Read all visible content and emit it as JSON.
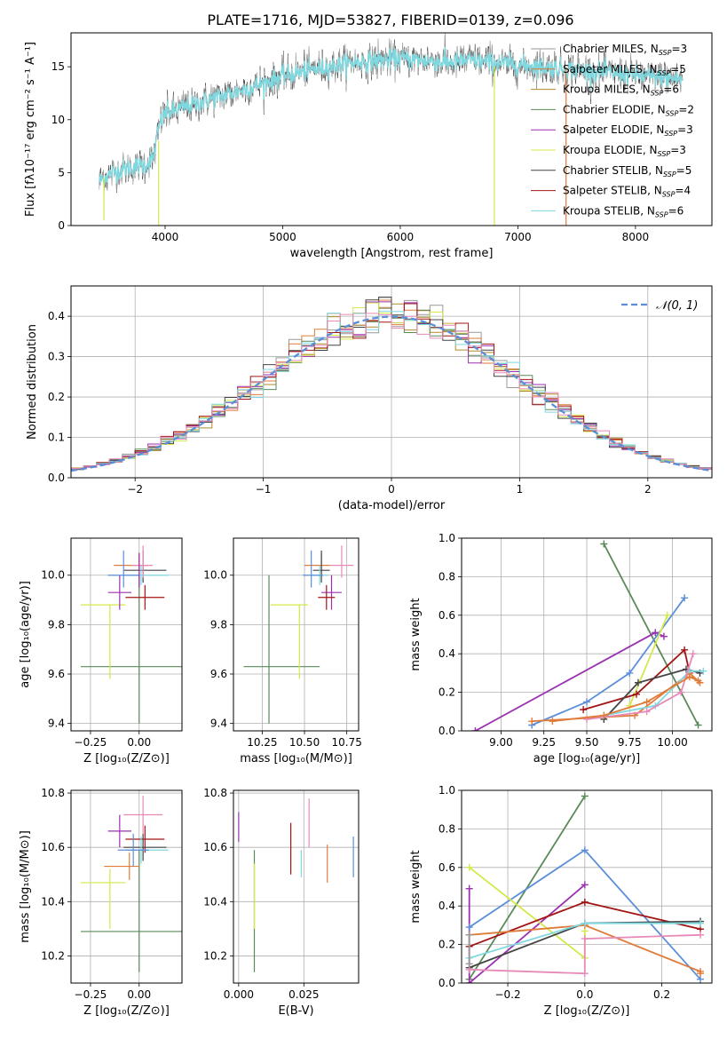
{
  "figure": {
    "title": "PLATE=1716, MJD=53827, FIBERID=0139, z=0.096"
  },
  "colors": {
    "Chabrier MILES": "#999999",
    "Salpeter MILES": "#e07b39",
    "Kroupa MILES": "#b08a2a",
    "Chabrier ELODIE": "#5a8a5a",
    "Salpeter ELODIE": "#9b30b0",
    "Kroupa ELODIE": "#d4e84a",
    "Chabrier STELIB": "#444444",
    "Salpeter STELIB": "#a31515",
    "Kroupa STELIB": "#7ed8e0",
    "gaussian": "#5b8ed8",
    "pink": "#e88ab8",
    "blue": "#5b8ed8",
    "orange": "#e07b39"
  },
  "chart_data": [
    {
      "id": "spectrum",
      "type": "line",
      "title": "PLATE=1716, MJD=53827, FIBERID=0139, z=0.096",
      "xlabel": "wavelength [Angstrom, rest frame]",
      "ylabel": "Flux [fλ10⁻¹⁷ erg cm⁻² s⁻¹ A⁻¹]",
      "xlim": [
        3200,
        8650
      ],
      "ylim": [
        0,
        18.2
      ],
      "xticks": [
        4000,
        5000,
        6000,
        7000,
        8000
      ],
      "yticks": [
        0,
        5,
        10,
        15
      ],
      "grid": false,
      "legend_placement": "top-right",
      "legend": [
        {
          "label": "Chabrier MILES, N",
          "sub": "SSP",
          "value": "=3"
        },
        {
          "label": "Salpeter MILES, N",
          "sub": "SSP",
          "value": "=5"
        },
        {
          "label": "Kroupa MILES, N",
          "sub": "SSP",
          "value": "=6"
        },
        {
          "label": "Chabrier ELODIE, N",
          "sub": "SSP",
          "value": "=2"
        },
        {
          "label": "Salpeter ELODIE, N",
          "sub": "SSP",
          "value": "=3"
        },
        {
          "label": "Kroupa ELODIE, N",
          "sub": "SSP",
          "value": "=3"
        },
        {
          "label": "Chabrier STELIB, N",
          "sub": "SSP",
          "value": "=5"
        },
        {
          "label": "Salpeter STELIB, N",
          "sub": "SSP",
          "value": "=4"
        },
        {
          "label": "Kroupa STELIB, N",
          "sub": "SSP",
          "value": "=6"
        }
      ],
      "continuum": {
        "x": [
          3440,
          3550,
          3700,
          3850,
          3900,
          3950,
          4000,
          4200,
          4400,
          4600,
          4800,
          5000,
          5200,
          5400,
          5600,
          5800,
          6000,
          6200,
          6400,
          6600,
          6800,
          7000,
          7200,
          7400,
          7600,
          7800,
          8000,
          8200,
          8400
        ],
        "y": [
          4.2,
          5.0,
          5.5,
          5.8,
          6.4,
          9.5,
          10.6,
          11.3,
          12.0,
          12.6,
          13.3,
          14.1,
          14.6,
          15.0,
          15.4,
          15.6,
          15.8,
          15.6,
          15.4,
          15.6,
          15.4,
          15.2,
          15.0,
          14.8,
          14.6,
          14.4,
          14.2,
          14.0,
          13.8
        ]
      },
      "spikes": [
        {
          "x": 3480,
          "y_from": 4.5,
          "y_to": 0.5
        },
        {
          "x": 3945,
          "y_from": 8.0,
          "y_to": 0.0
        },
        {
          "x": 6800,
          "y_from": 15.0,
          "y_to": 0.0
        },
        {
          "x": 7410,
          "y_from": 15.0,
          "y_to": 0.0
        }
      ]
    },
    {
      "id": "residuals",
      "type": "histogram",
      "xlabel": "(data-model)/error",
      "ylabel": "Normed distribution",
      "xlim": [
        -2.5,
        2.5
      ],
      "ylim": [
        0,
        0.475
      ],
      "xticks": [
        -2,
        -1,
        0,
        1,
        2
      ],
      "yticks": [
        0.0,
        0.1,
        0.2,
        0.3,
        0.4
      ],
      "grid": true,
      "legend_placement": "top-right",
      "gaussian_label": "𝒩(0, 1)",
      "bin_width": 0.1,
      "bin_start": -2.5
    },
    {
      "id": "age_vs_Z",
      "type": "scatter",
      "xlabel": "Z [log₁₀(Z/Z⊙)]",
      "ylabel": "age  [log₁₀(age/yr)]",
      "xlim": [
        -0.35,
        0.22
      ],
      "ylim": [
        9.37,
        10.15
      ],
      "xticks": [
        -0.25,
        0.0
      ],
      "yticks": [
        9.4,
        9.6,
        9.8,
        10.0
      ],
      "grid": true,
      "points": [
        {
          "c": "Chabrier ELODIE",
          "x": 0.0,
          "xerr": [
            0.3,
            0.3
          ],
          "y": 9.63,
          "yerr": [
            0.23,
            0.37
          ]
        },
        {
          "c": "Kroupa ELODIE",
          "x": -0.15,
          "xerr": [
            0.15,
            0.08
          ],
          "y": 9.88,
          "yerr": [
            0.3,
            0.0
          ]
        },
        {
          "c": "Salpeter ELODIE",
          "x": -0.1,
          "xerr": [
            0.06,
            0.06
          ],
          "y": 9.93,
          "yerr": [
            0.07,
            0.07
          ]
        },
        {
          "c": "Salpeter STELIB",
          "x": 0.03,
          "xerr": [
            0.1,
            0.1
          ],
          "y": 9.91,
          "yerr": [
            0.05,
            0.05
          ]
        },
        {
          "c": "Salpeter MILES",
          "x": 0.0,
          "xerr": [
            0.13,
            0.05
          ],
          "y": 10.04,
          "yerr": [
            0.05,
            0.05
          ]
        },
        {
          "c": "Chabrier STELIB",
          "x": 0.02,
          "xerr": [
            0.1,
            0.12
          ],
          "y": 10.02,
          "yerr": [
            0.05,
            0.08
          ]
        },
        {
          "c": "Kroupa STELIB",
          "x": 0.01,
          "xerr": [
            0.08,
            0.14
          ],
          "y": 10.0,
          "yerr": [
            0.04,
            0.04
          ]
        },
        {
          "c": "pink",
          "x": 0.02,
          "xerr": [
            0.06,
            0.05
          ],
          "y": 10.04,
          "yerr": [
            0.05,
            0.08
          ]
        },
        {
          "c": "blue",
          "x": -0.08,
          "xerr": [
            0.08,
            0.08
          ],
          "y": 10.0,
          "yerr": [
            0.05,
            0.1
          ]
        },
        {
          "c": "Salpeter ELODIE",
          "x": 0.0,
          "xerr": [
            0.0,
            0.0
          ],
          "y": 10.03,
          "yerr": [
            0.08,
            0.06
          ]
        }
      ]
    },
    {
      "id": "age_vs_mass",
      "type": "scatter",
      "xlabel": "mass [log₁₀(M/M⊙)]",
      "ylabel": "",
      "xlim": [
        10.08,
        10.82
      ],
      "ylim": [
        9.37,
        10.15
      ],
      "xticks": [
        10.25,
        10.5,
        10.75
      ],
      "yticks": [
        9.4,
        9.6,
        9.8,
        10.0
      ],
      "grid": true,
      "points": [
        {
          "c": "Chabrier ELODIE",
          "x": 10.29,
          "xerr": [
            0.15,
            0.3
          ],
          "y": 9.63,
          "yerr": [
            0.23,
            0.37
          ]
        },
        {
          "c": "Kroupa ELODIE",
          "x": 10.47,
          "xerr": [
            0.17,
            0.05
          ],
          "y": 9.88,
          "yerr": [
            0.3,
            0.0
          ]
        },
        {
          "c": "Salpeter ELODIE",
          "x": 10.66,
          "xerr": [
            0.06,
            0.06
          ],
          "y": 9.93,
          "yerr": [
            0.07,
            0.07
          ]
        },
        {
          "c": "Salpeter STELIB",
          "x": 10.63,
          "xerr": [
            0.05,
            0.05
          ],
          "y": 9.91,
          "yerr": [
            0.05,
            0.05
          ]
        },
        {
          "c": "Salpeter MILES",
          "x": 10.6,
          "xerr": [
            0.1,
            0.05
          ],
          "y": 10.04,
          "yerr": [
            0.05,
            0.05
          ]
        },
        {
          "c": "Chabrier STELIB",
          "x": 10.6,
          "xerr": [
            0.05,
            0.05
          ],
          "y": 10.02,
          "yerr": [
            0.05,
            0.08
          ]
        },
        {
          "c": "Kroupa STELIB",
          "x": 10.59,
          "xerr": [
            0.05,
            0.05
          ],
          "y": 10.0,
          "yerr": [
            0.04,
            0.04
          ]
        },
        {
          "c": "pink",
          "x": 10.72,
          "xerr": [
            0.07,
            0.07
          ],
          "y": 10.04,
          "yerr": [
            0.05,
            0.08
          ]
        },
        {
          "c": "blue",
          "x": 10.54,
          "xerr": [
            0.05,
            0.07
          ],
          "y": 10.0,
          "yerr": [
            0.05,
            0.1
          ]
        }
      ]
    },
    {
      "id": "weight_vs_age",
      "type": "line",
      "xlabel": "age  [log₁₀(age/yr)]",
      "ylabel": "mass weight",
      "xlim": [
        8.77,
        10.23
      ],
      "ylim": [
        0,
        1.0
      ],
      "xticks": [
        9.0,
        9.25,
        9.5,
        9.75,
        10.0
      ],
      "yticks": [
        0.0,
        0.2,
        0.4,
        0.6,
        0.8,
        1.0
      ],
      "grid": true,
      "series": [
        {
          "c": "Chabrier ELODIE",
          "x": [
            9.6,
            10.15
          ],
          "y": [
            0.97,
            0.03
          ]
        },
        {
          "c": "Salpeter ELODIE",
          "x": [
            8.85,
            9.9,
            9.95
          ],
          "y": [
            0.0,
            0.51,
            0.49
          ]
        },
        {
          "c": "blue",
          "x": [
            9.18,
            9.5,
            9.75,
            10.07
          ],
          "y": [
            0.03,
            0.15,
            0.3,
            0.69
          ]
        },
        {
          "c": "Kroupa ELODIE",
          "x": [
            9.75,
            9.97
          ],
          "y": [
            0.13,
            0.6
          ]
        },
        {
          "c": "Salpeter STELIB",
          "x": [
            9.48,
            9.79,
            10.07,
            10.1
          ],
          "y": [
            0.11,
            0.19,
            0.42,
            0.3
          ]
        },
        {
          "c": "Chabrier STELIB",
          "x": [
            9.6,
            9.8,
            10.08,
            10.16
          ],
          "y": [
            0.06,
            0.25,
            0.32,
            0.3
          ]
        },
        {
          "c": "Salpeter MILES",
          "x": [
            9.18,
            9.78,
            10.1,
            10.16
          ],
          "y": [
            0.05,
            0.08,
            0.3,
            0.25
          ]
        },
        {
          "c": "Kroupa STELIB",
          "x": [
            9.6,
            9.9,
            10.1,
            10.18
          ],
          "y": [
            0.08,
            0.13,
            0.31,
            0.31
          ]
        },
        {
          "c": "pink",
          "x": [
            9.5,
            9.85,
            10.05,
            10.12
          ],
          "y": [
            0.06,
            0.1,
            0.2,
            0.4
          ]
        },
        {
          "c": "Salpeter MILES",
          "x": [
            9.3,
            9.6,
            9.85,
            10.1,
            10.15
          ],
          "y": [
            0.05,
            0.08,
            0.15,
            0.28,
            0.26
          ]
        }
      ]
    },
    {
      "id": "mass_vs_Z",
      "type": "scatter",
      "xlabel": "Z [log₁₀(Z/Z⊙)]",
      "ylabel": "mass [log₁₀(M/M⊙)]",
      "xlim": [
        -0.35,
        0.22
      ],
      "ylim": [
        10.1,
        10.81
      ],
      "xticks": [
        -0.25,
        0.0
      ],
      "yticks": [
        10.2,
        10.4,
        10.6,
        10.8
      ],
      "grid": true,
      "points": [
        {
          "c": "Chabrier ELODIE",
          "x": 0.0,
          "xerr": [
            0.3,
            0.3
          ],
          "y": 10.29,
          "yerr": [
            0.15,
            0.3
          ]
        },
        {
          "c": "Kroupa ELODIE",
          "x": -0.15,
          "xerr": [
            0.15,
            0.08
          ],
          "y": 10.47,
          "yerr": [
            0.17,
            0.05
          ]
        },
        {
          "c": "Salpeter ELODIE",
          "x": -0.1,
          "xerr": [
            0.06,
            0.06
          ],
          "y": 10.66,
          "yerr": [
            0.06,
            0.06
          ]
        },
        {
          "c": "Salpeter STELIB",
          "x": 0.03,
          "xerr": [
            0.1,
            0.1
          ],
          "y": 10.63,
          "yerr": [
            0.05,
            0.05
          ]
        },
        {
          "c": "Salpeter MILES",
          "x": -0.05,
          "xerr": [
            0.13,
            0.05
          ],
          "y": 10.53,
          "yerr": [
            0.05,
            0.05
          ]
        },
        {
          "c": "Chabrier STELIB",
          "x": 0.02,
          "xerr": [
            0.1,
            0.12
          ],
          "y": 10.6,
          "yerr": [
            0.05,
            0.05
          ]
        },
        {
          "c": "Kroupa STELIB",
          "x": 0.01,
          "xerr": [
            0.08,
            0.14
          ],
          "y": 10.59,
          "yerr": [
            0.05,
            0.05
          ]
        },
        {
          "c": "pink",
          "x": 0.02,
          "xerr": [
            0.1,
            0.1
          ],
          "y": 10.72,
          "yerr": [
            0.07,
            0.07
          ]
        },
        {
          "c": "blue",
          "x": -0.03,
          "xerr": [
            0.08,
            0.08
          ],
          "y": 10.59,
          "yerr": [
            0.06,
            0.06
          ]
        }
      ]
    },
    {
      "id": "mass_vs_ebv",
      "type": "scatter",
      "xlabel": "E(B-V)",
      "ylabel": "",
      "xlim": [
        -0.002,
        0.046
      ],
      "ylim": [
        10.1,
        10.81
      ],
      "xticks": [
        0.0,
        0.025
      ],
      "yticks": [
        10.2,
        10.4,
        10.6,
        10.8
      ],
      "grid": true,
      "points": [
        {
          "c": "Salpeter ELODIE",
          "x": 0.0,
          "y": 10.67,
          "yerr": [
            0.05,
            0.06
          ]
        },
        {
          "c": "Chabrier ELODIE",
          "x": 0.006,
          "y": 10.29,
          "yerr": [
            0.15,
            0.3
          ]
        },
        {
          "c": "Kroupa ELODIE",
          "x": 0.006,
          "y": 10.47,
          "yerr": [
            0.17,
            0.07
          ]
        },
        {
          "c": "Salpeter STELIB",
          "x": 0.02,
          "y": 10.6,
          "yerr": [
            0.1,
            0.09
          ]
        },
        {
          "c": "Kroupa STELIB",
          "x": 0.024,
          "y": 10.56,
          "yerr": [
            0.07,
            0.03
          ]
        },
        {
          "c": "pink",
          "x": 0.027,
          "y": 10.68,
          "yerr": [
            0.08,
            0.1
          ]
        },
        {
          "c": "Salpeter MILES",
          "x": 0.034,
          "y": 10.54,
          "yerr": [
            0.07,
            0.07
          ]
        },
        {
          "c": "blue",
          "x": 0.044,
          "y": 10.56,
          "yerr": [
            0.07,
            0.08
          ]
        }
      ]
    },
    {
      "id": "weight_vs_Z",
      "type": "line",
      "xlabel": "Z [log₁₀(Z/Z⊙)]",
      "ylabel": "mass weight",
      "xlim": [
        -0.32,
        0.33
      ],
      "ylim": [
        0,
        1.0
      ],
      "xticks": [
        -0.2,
        0.0,
        0.2
      ],
      "yticks": [
        0.0,
        0.2,
        0.4,
        0.6,
        0.8,
        1.0
      ],
      "grid": true,
      "series": [
        {
          "c": "Chabrier ELODIE",
          "x": [
            -0.3,
            0.0
          ],
          "y": [
            0.02,
            0.97
          ]
        },
        {
          "c": "Salpeter ELODIE",
          "x": [
            -0.3,
            -0.3,
            0.0
          ],
          "y": [
            0.49,
            0.0,
            0.51
          ]
        },
        {
          "c": "blue",
          "x": [
            -0.3,
            0.0,
            0.3
          ],
          "y": [
            0.29,
            0.69,
            0.02
          ]
        },
        {
          "c": "Kroupa ELODIE",
          "x": [
            -0.3,
            0.0,
            0.0
          ],
          "y": [
            0.6,
            0.13,
            0.27
          ]
        },
        {
          "c": "Salpeter STELIB",
          "x": [
            -0.3,
            0.0,
            0.3
          ],
          "y": [
            0.19,
            0.42,
            0.28
          ]
        },
        {
          "c": "Chabrier STELIB",
          "x": [
            -0.3,
            0.0,
            0.3
          ],
          "y": [
            0.08,
            0.31,
            0.32
          ]
        },
        {
          "c": "Salpeter MILES",
          "x": [
            -0.3,
            0.0,
            0.3,
            0.3
          ],
          "y": [
            0.25,
            0.3,
            0.06,
            0.05
          ]
        },
        {
          "c": "Kroupa STELIB",
          "x": [
            -0.3,
            0.0,
            0.3
          ],
          "y": [
            0.13,
            0.31,
            0.31
          ]
        },
        {
          "c": "pink",
          "x": [
            -0.3,
            0.0,
            0.0,
            0.3
          ],
          "y": [
            0.07,
            0.05,
            0.23,
            0.25
          ]
        },
        {
          "c": "Chabrier MILES",
          "x": [
            -0.3,
            -0.3
          ],
          "y": [
            0.1,
            0.25
          ]
        }
      ]
    }
  ]
}
